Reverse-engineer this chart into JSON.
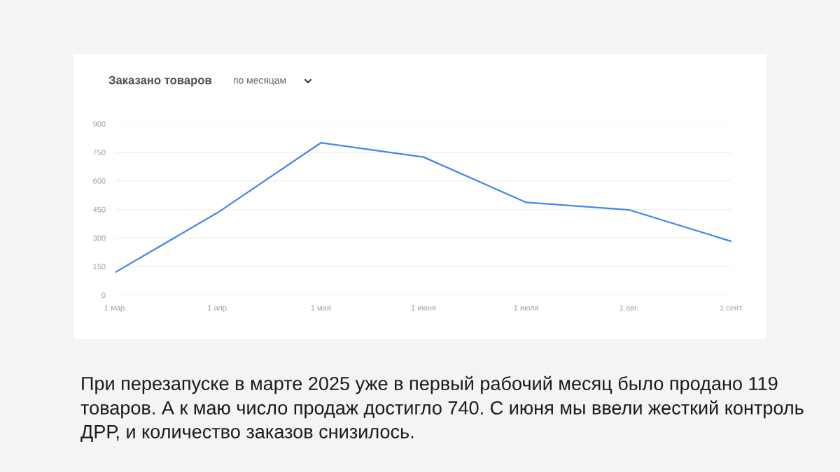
{
  "chart_data": {
    "type": "line",
    "title": "Заказано товаров",
    "subtitle": "по месяцам",
    "categories": [
      "1 мар.",
      "1 апр.",
      "1 мая",
      "1 июня",
      "1 июля",
      "1 авг.",
      "1 сент."
    ],
    "series": [
      {
        "color": "#4285f4",
        "values": [
          120,
          435,
          800,
          725,
          487,
          448,
          282
        ]
      }
    ],
    "ylim": [
      0,
      900
    ],
    "yticks": [
      0,
      150,
      300,
      450,
      600,
      750,
      900
    ],
    "grid": "y",
    "legend": false,
    "marker": "none",
    "line_style": "solid",
    "annotations": [
      "При перезапуске в марте 2025 уже в первый рабочий месяц было продано 119 товаров. А к маю число продаж достигло 740. С июня мы ввели жесткий контроль ДРР, и количество заказов снизилось."
    ]
  }
}
